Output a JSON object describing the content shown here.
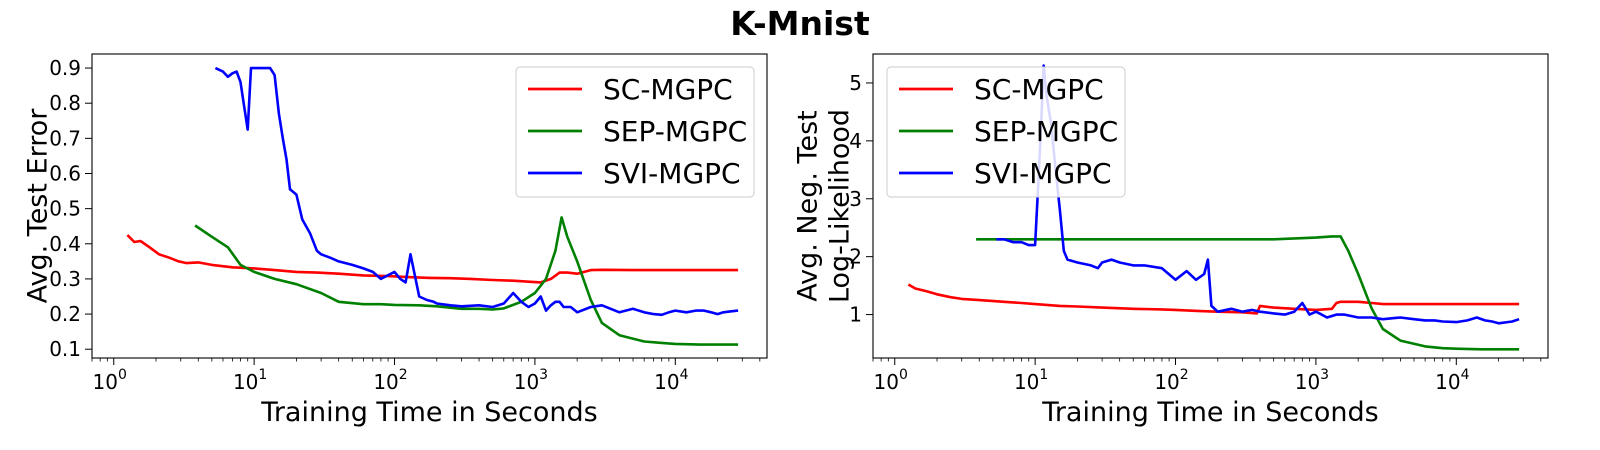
{
  "figure": {
    "title": "K-Mnist"
  },
  "chart_data": [
    {
      "type": "line",
      "xscale": "log",
      "xlabel": "Training Time in Seconds",
      "ylabel": [
        "Avg. Test Error"
      ],
      "xlim": [
        0.7,
        45000
      ],
      "ylim": [
        0.075,
        0.94
      ],
      "xticks": [
        1,
        10,
        100,
        1000,
        10000
      ],
      "xtick_labels": [
        [
          "10",
          "0"
        ],
        [
          "10",
          "1"
        ],
        [
          "10",
          "2"
        ],
        [
          "10",
          "3"
        ],
        [
          "10",
          "4"
        ]
      ],
      "yticks": [
        0.1,
        0.2,
        0.3,
        0.4,
        0.5,
        0.6,
        0.7,
        0.8,
        0.9
      ],
      "ytick_labels": [
        "0.1",
        "0.2",
        "0.3",
        "0.4",
        "0.5",
        "0.6",
        "0.7",
        "0.8",
        "0.9"
      ],
      "legend_position": "top-right",
      "series": [
        {
          "name": "SC-MGPC",
          "color": "#ff0000",
          "x": [
            1.25,
            1.4,
            1.55,
            1.8,
            2.1,
            2.5,
            2.9,
            3.3,
            4,
            5,
            7,
            10,
            14,
            20,
            28,
            40,
            60,
            90,
            130,
            180,
            250,
            350,
            500,
            700,
            900,
            1100,
            1300,
            1500,
            1700,
            2000,
            2500,
            3000,
            5000,
            10000,
            20000,
            28000
          ],
          "y": [
            0.425,
            0.405,
            0.408,
            0.39,
            0.37,
            0.36,
            0.35,
            0.345,
            0.347,
            0.34,
            0.333,
            0.33,
            0.325,
            0.32,
            0.318,
            0.315,
            0.31,
            0.308,
            0.305,
            0.303,
            0.302,
            0.3,
            0.297,
            0.295,
            0.292,
            0.29,
            0.3,
            0.318,
            0.318,
            0.315,
            0.325,
            0.326,
            0.325,
            0.325,
            0.325,
            0.325
          ]
        },
        {
          "name": "SEP-MGPC",
          "color": "#008000",
          "x": [
            3.8,
            5,
            6.5,
            8,
            10,
            14,
            20,
            30,
            40,
            60,
            80,
            100,
            150,
            200,
            300,
            400,
            500,
            600,
            800,
            1000,
            1200,
            1400,
            1550,
            1700,
            2000,
            2500,
            3000,
            4000,
            6000,
            8000,
            10000,
            15000,
            28000
          ],
          "y": [
            0.452,
            0.42,
            0.39,
            0.34,
            0.32,
            0.3,
            0.285,
            0.26,
            0.235,
            0.228,
            0.228,
            0.226,
            0.225,
            0.222,
            0.215,
            0.215,
            0.213,
            0.216,
            0.235,
            0.26,
            0.3,
            0.38,
            0.475,
            0.42,
            0.35,
            0.24,
            0.175,
            0.14,
            0.122,
            0.118,
            0.115,
            0.113,
            0.113
          ]
        },
        {
          "name": "SVI-MGPC",
          "color": "#0000ff",
          "x": [
            5.3,
            6,
            6.5,
            7,
            7.5,
            8,
            8.5,
            9,
            9.5,
            10,
            11,
            12,
            13,
            14,
            15,
            16,
            17,
            18,
            20,
            22,
            25,
            28,
            30,
            35,
            40,
            50,
            60,
            70,
            80,
            100,
            110,
            120,
            130,
            150,
            170,
            190,
            200,
            250,
            300,
            400,
            500,
            600,
            700,
            800,
            900,
            1000,
            1100,
            1200,
            1300,
            1400,
            1500,
            1600,
            1800,
            2000,
            2500,
            3000,
            4000,
            5000,
            6000,
            7000,
            8000,
            9000,
            10000,
            12000,
            14000,
            16000,
            18000,
            20000,
            22000,
            25000,
            28000
          ],
          "y": [
            0.9,
            0.89,
            0.875,
            0.885,
            0.89,
            0.86,
            0.79,
            0.725,
            0.9,
            0.9,
            0.9,
            0.9,
            0.9,
            0.88,
            0.77,
            0.7,
            0.64,
            0.555,
            0.54,
            0.47,
            0.43,
            0.38,
            0.37,
            0.36,
            0.35,
            0.34,
            0.33,
            0.32,
            0.3,
            0.32,
            0.3,
            0.29,
            0.37,
            0.25,
            0.24,
            0.235,
            0.23,
            0.225,
            0.222,
            0.225,
            0.22,
            0.23,
            0.26,
            0.235,
            0.22,
            0.23,
            0.25,
            0.21,
            0.225,
            0.235,
            0.235,
            0.22,
            0.22,
            0.205,
            0.22,
            0.225,
            0.205,
            0.215,
            0.205,
            0.2,
            0.198,
            0.205,
            0.21,
            0.205,
            0.21,
            0.21,
            0.205,
            0.2,
            0.205,
            0.208,
            0.21
          ]
        }
      ]
    },
    {
      "type": "line",
      "xscale": "log",
      "xlabel": "Training Time in Seconds",
      "ylabel": [
        "Avg. Neg. Test",
        "Log-Likelihood"
      ],
      "xlim": [
        0.7,
        45000
      ],
      "ylim": [
        0.25,
        5.5
      ],
      "xticks": [
        1,
        10,
        100,
        1000,
        10000
      ],
      "xtick_labels": [
        [
          "10",
          "0"
        ],
        [
          "10",
          "1"
        ],
        [
          "10",
          "2"
        ],
        [
          "10",
          "3"
        ],
        [
          "10",
          "4"
        ]
      ],
      "yticks": [
        1,
        2,
        3,
        4,
        5
      ],
      "ytick_labels": [
        "1",
        "2",
        "3",
        "4",
        "5"
      ],
      "legend_position": "top-left",
      "series": [
        {
          "name": "SC-MGPC",
          "color": "#ff0000",
          "x": [
            1.25,
            1.4,
            1.7,
            2,
            2.5,
            3,
            4,
            6,
            8,
            10,
            15,
            20,
            30,
            50,
            80,
            100,
            150,
            200,
            300,
            380,
            400,
            500,
            700,
            1000,
            1300,
            1400,
            1500,
            2000,
            2500,
            3000,
            5000,
            10000,
            28000
          ],
          "y": [
            1.52,
            1.45,
            1.4,
            1.35,
            1.3,
            1.27,
            1.25,
            1.22,
            1.2,
            1.18,
            1.15,
            1.14,
            1.12,
            1.1,
            1.09,
            1.08,
            1.06,
            1.05,
            1.04,
            1.02,
            1.15,
            1.12,
            1.1,
            1.08,
            1.1,
            1.2,
            1.22,
            1.22,
            1.2,
            1.18,
            1.18,
            1.18,
            1.18
          ]
        },
        {
          "name": "SEP-MGPC",
          "color": "#008000",
          "x": [
            3.8,
            10,
            100,
            500,
            1000,
            1300,
            1500,
            1700,
            2000,
            2500,
            3000,
            4000,
            6000,
            8000,
            10000,
            15000,
            28000
          ],
          "y": [
            2.3,
            2.3,
            2.3,
            2.3,
            2.33,
            2.35,
            2.35,
            2.1,
            1.7,
            1.1,
            0.75,
            0.55,
            0.45,
            0.42,
            0.41,
            0.4,
            0.4
          ]
        },
        {
          "name": "SVI-MGPC",
          "color": "#0000ff",
          "x": [
            5.3,
            6,
            7,
            8,
            9,
            10,
            10.5,
            11,
            11.5,
            12,
            13,
            14,
            15,
            16,
            17,
            20,
            25,
            28,
            30,
            35,
            40,
            50,
            60,
            80,
            100,
            120,
            140,
            160,
            170,
            180,
            200,
            250,
            300,
            350,
            400,
            500,
            600,
            700,
            800,
            900,
            1000,
            1100,
            1200,
            1400,
            1600,
            2000,
            2500,
            3000,
            4000,
            5000,
            6000,
            7000,
            8000,
            10000,
            12000,
            14000,
            16000,
            18000,
            20000,
            25000,
            28000
          ],
          "y": [
            2.3,
            2.3,
            2.25,
            2.25,
            2.2,
            2.2,
            3.2,
            4.2,
            5.3,
            4.8,
            4.3,
            3.5,
            2.8,
            2.1,
            1.95,
            1.9,
            1.85,
            1.8,
            1.9,
            1.95,
            1.9,
            1.85,
            1.85,
            1.8,
            1.6,
            1.75,
            1.6,
            1.7,
            1.95,
            1.15,
            1.05,
            1.1,
            1.05,
            1.08,
            1.05,
            1.02,
            1.0,
            1.05,
            1.2,
            1.0,
            1.05,
            1.0,
            0.95,
            1.0,
            1.0,
            0.95,
            0.95,
            0.92,
            0.95,
            0.92,
            0.9,
            0.9,
            0.88,
            0.87,
            0.9,
            0.95,
            0.9,
            0.88,
            0.85,
            0.88,
            0.92
          ]
        }
      ]
    }
  ]
}
